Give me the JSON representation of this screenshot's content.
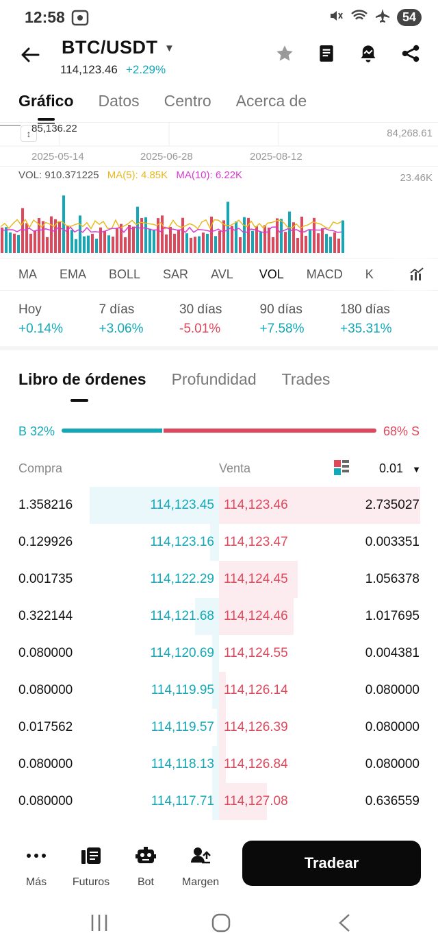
{
  "status_bar": {
    "time": "12:58",
    "battery": "54"
  },
  "header": {
    "pair": "BTC/USDT",
    "last_price": "114,123.46",
    "change": "+2.29%"
  },
  "tabs": [
    "Gráfico",
    "Datos",
    "Centro",
    "Acerca de"
  ],
  "chart": {
    "high_label": "85,136.22",
    "right_price": "84,268.61",
    "dates": [
      "2025-05-14",
      "2025-06-28",
      "2025-08-12"
    ],
    "vol_label": "VOL: 910.371225",
    "ma5_label": "MA(5): 4.85K",
    "ma10_label": "MA(10): 6.22K",
    "vol_max": "23.46K",
    "colors": {
      "up": "#13a8b8",
      "down": "#e0475b",
      "ma5": "#e8b923",
      "ma10": "#d63ad0"
    }
  },
  "indicators": [
    "MA",
    "EMA",
    "BOLL",
    "SAR",
    "AVL",
    "VOL",
    "MACD",
    "K"
  ],
  "active_indicator": "VOL",
  "periods": [
    {
      "label": "Hoy",
      "value": "+0.14%",
      "dir": "pos"
    },
    {
      "label": "7 días",
      "value": "+3.06%",
      "dir": "pos"
    },
    {
      "label": "30 días",
      "value": "-5.01%",
      "dir": "neg"
    },
    {
      "label": "90 días",
      "value": "+7.58%",
      "dir": "pos"
    },
    {
      "label": "180 días",
      "value": "+35.31%",
      "dir": "pos"
    }
  ],
  "orderbook_tabs": [
    "Libro de órdenes",
    "Profundidad",
    "Trades"
  ],
  "ratio": {
    "buy_label": "B 32%",
    "sell_label": "68% S",
    "buy_fraction": 0.32
  },
  "columns": {
    "buy": "Compra",
    "sell": "Venta",
    "precision": "0.01"
  },
  "orders": [
    {
      "bq": "1.358216",
      "bp": "114,123.45",
      "sp": "114,123.46",
      "sq": "2.735027",
      "bd": 0.59,
      "sd": 0.92
    },
    {
      "bq": "0.129926",
      "bp": "114,123.16",
      "sp": "114,123.47",
      "sq": "0.003351",
      "bd": 0.04,
      "sd": 0.0
    },
    {
      "bq": "0.001735",
      "bp": "114,122.29",
      "sp": "114,124.45",
      "sq": "1.056378",
      "bd": 0.0,
      "sd": 0.36
    },
    {
      "bq": "0.322144",
      "bp": "114,121.68",
      "sp": "114,124.46",
      "sq": "1.017695",
      "bd": 0.11,
      "sd": 0.34
    },
    {
      "bq": "0.080000",
      "bp": "114,120.69",
      "sp": "114,124.55",
      "sq": "0.004381",
      "bd": 0.03,
      "sd": 0.0
    },
    {
      "bq": "0.080000",
      "bp": "114,119.95",
      "sp": "114,126.14",
      "sq": "0.080000",
      "bd": 0.03,
      "sd": 0.03
    },
    {
      "bq": "0.017562",
      "bp": "114,119.57",
      "sp": "114,126.39",
      "sq": "0.080000",
      "bd": 0.01,
      "sd": 0.03
    },
    {
      "bq": "0.080000",
      "bp": "114,118.13",
      "sp": "114,126.84",
      "sq": "0.080000",
      "bd": 0.03,
      "sd": 0.03
    },
    {
      "bq": "0.080000",
      "bp": "114,117.71",
      "sp": "114,127.08",
      "sq": "0.636559",
      "bd": 0.03,
      "sd": 0.22
    }
  ],
  "bottom_nav": [
    "Más",
    "Futuros",
    "Bot",
    "Margen"
  ],
  "trade_button": "Tradear"
}
